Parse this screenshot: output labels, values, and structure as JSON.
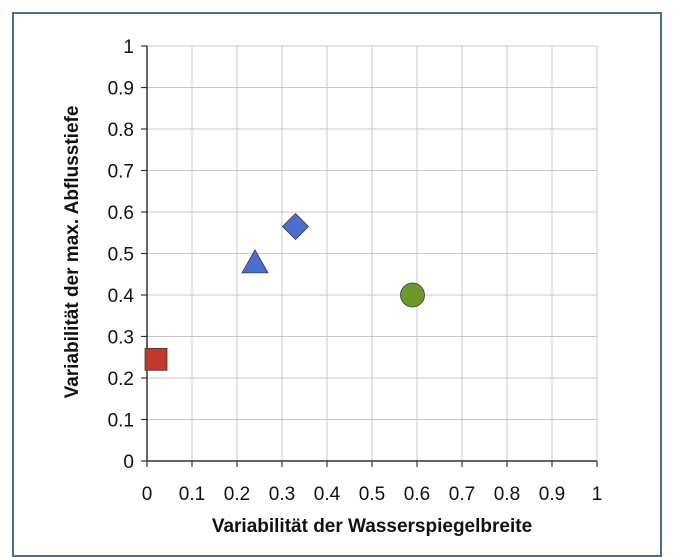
{
  "chart_data": {
    "type": "scatter",
    "title": "",
    "xlabel": "Variabilität der Wasserspiegelbreite",
    "ylabel": "Variabilität der max. Abflusstiefe",
    "xlim": [
      0,
      1
    ],
    "ylim": [
      0,
      1
    ],
    "x_ticks": [
      "0",
      "0.1",
      "0.2",
      "0.3",
      "0.4",
      "0.5",
      "0.6",
      "0.7",
      "0.8",
      "0.9",
      "1"
    ],
    "y_ticks": [
      "0",
      "0.1",
      "0.2",
      "0.3",
      "0.4",
      "0.5",
      "0.6",
      "0.7",
      "0.8",
      "0.9",
      "1"
    ],
    "grid": true,
    "legend": "none",
    "points": [
      {
        "x": 0.02,
        "y": 0.245,
        "marker": "square",
        "color": "#c0392b"
      },
      {
        "x": 0.24,
        "y": 0.475,
        "marker": "triangle",
        "color": "#4a6fd1"
      },
      {
        "x": 0.33,
        "y": 0.565,
        "marker": "diamond",
        "color": "#4a6fd1"
      },
      {
        "x": 0.59,
        "y": 0.4,
        "marker": "circle",
        "color": "#6b9a2a"
      }
    ]
  }
}
